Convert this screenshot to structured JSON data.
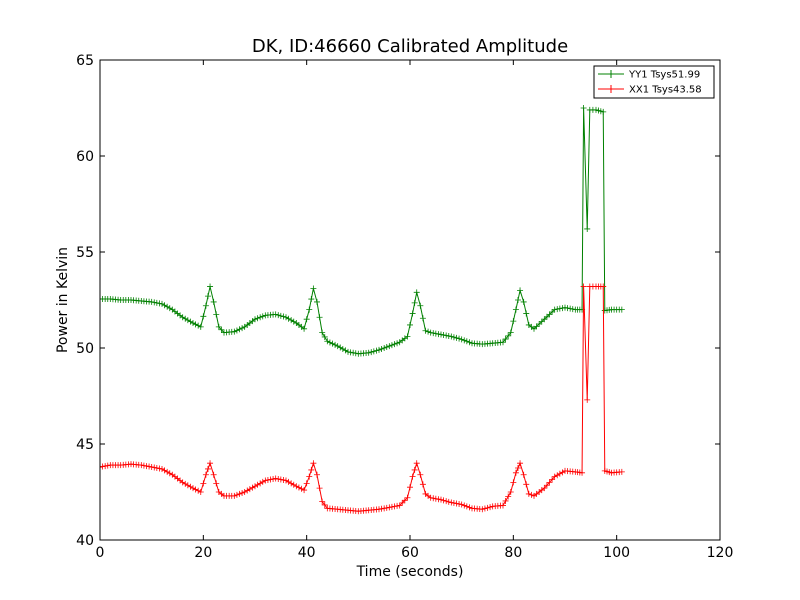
{
  "chart_data": {
    "type": "line",
    "title": "DK, ID:46660 Calibrated Amplitude",
    "xlabel": "Time (seconds)",
    "ylabel": "Power in Kelvin",
    "xlim": [
      0,
      120
    ],
    "ylim": [
      40,
      65
    ],
    "xticks": [
      0,
      20,
      40,
      60,
      80,
      100,
      120
    ],
    "yticks": [
      40,
      45,
      50,
      55,
      60,
      65
    ],
    "grid": false,
    "legend_position": "top-right",
    "marker": "+",
    "series": [
      {
        "name": "YY1 Tsys51.99",
        "color": "#008000",
        "points": [
          [
            0,
            52.55
          ],
          [
            2,
            52.55
          ],
          [
            4,
            52.5
          ],
          [
            6,
            52.5
          ],
          [
            8,
            52.45
          ],
          [
            10,
            52.4
          ],
          [
            12,
            52.3
          ],
          [
            14,
            52.0
          ],
          [
            16,
            51.6
          ],
          [
            18,
            51.3
          ],
          [
            19.5,
            51.1
          ],
          [
            20.5,
            52.2
          ],
          [
            21.3,
            53.2
          ],
          [
            22,
            52.4
          ],
          [
            23,
            51.1
          ],
          [
            24,
            50.8
          ],
          [
            26,
            50.85
          ],
          [
            28,
            51.1
          ],
          [
            30,
            51.5
          ],
          [
            32,
            51.7
          ],
          [
            34,
            51.75
          ],
          [
            36,
            51.6
          ],
          [
            38,
            51.3
          ],
          [
            39.5,
            51.0
          ],
          [
            40.5,
            52.0
          ],
          [
            41.3,
            53.1
          ],
          [
            42,
            52.4
          ],
          [
            43,
            50.8
          ],
          [
            44,
            50.35
          ],
          [
            46,
            50.1
          ],
          [
            48,
            49.8
          ],
          [
            50,
            49.7
          ],
          [
            52,
            49.75
          ],
          [
            54,
            49.9
          ],
          [
            56,
            50.1
          ],
          [
            58,
            50.3
          ],
          [
            59.5,
            50.6
          ],
          [
            60.5,
            51.8
          ],
          [
            61.3,
            52.9
          ],
          [
            62,
            52.2
          ],
          [
            63,
            50.9
          ],
          [
            64,
            50.8
          ],
          [
            66,
            50.7
          ],
          [
            68,
            50.6
          ],
          [
            70,
            50.45
          ],
          [
            72,
            50.25
          ],
          [
            74,
            50.2
          ],
          [
            76,
            50.25
          ],
          [
            78,
            50.3
          ],
          [
            79.5,
            50.8
          ],
          [
            80.5,
            52.0
          ],
          [
            81.3,
            53.0
          ],
          [
            82,
            52.4
          ],
          [
            83,
            51.2
          ],
          [
            84,
            51.0
          ],
          [
            86,
            51.5
          ],
          [
            88,
            52.0
          ],
          [
            90,
            52.1
          ],
          [
            92,
            52.0
          ],
          [
            93.3,
            52.0
          ],
          [
            93.6,
            62.5
          ],
          [
            94.3,
            56.2
          ],
          [
            94.8,
            62.4
          ],
          [
            96,
            62.4
          ],
          [
            97.4,
            62.3
          ],
          [
            97.7,
            51.95
          ],
          [
            99,
            52.0
          ],
          [
            101,
            52.0
          ]
        ]
      },
      {
        "name": "XX1 Tsys43.58",
        "color": "#ff0000",
        "points": [
          [
            0,
            43.8
          ],
          [
            2,
            43.9
          ],
          [
            4,
            43.9
          ],
          [
            6,
            43.95
          ],
          [
            8,
            43.9
          ],
          [
            10,
            43.8
          ],
          [
            12,
            43.7
          ],
          [
            14,
            43.4
          ],
          [
            16,
            43.0
          ],
          [
            18,
            42.7
          ],
          [
            19.5,
            42.5
          ],
          [
            20.5,
            43.4
          ],
          [
            21.3,
            44.0
          ],
          [
            22,
            43.4
          ],
          [
            23,
            42.5
          ],
          [
            24,
            42.3
          ],
          [
            26,
            42.3
          ],
          [
            28,
            42.5
          ],
          [
            30,
            42.8
          ],
          [
            32,
            43.1
          ],
          [
            34,
            43.2
          ],
          [
            36,
            43.1
          ],
          [
            38,
            42.8
          ],
          [
            39.5,
            42.6
          ],
          [
            40.5,
            43.3
          ],
          [
            41.3,
            44.0
          ],
          [
            42,
            43.4
          ],
          [
            43,
            42.0
          ],
          [
            44,
            41.65
          ],
          [
            46,
            41.6
          ],
          [
            48,
            41.55
          ],
          [
            50,
            41.5
          ],
          [
            52,
            41.55
          ],
          [
            54,
            41.6
          ],
          [
            56,
            41.7
          ],
          [
            58,
            41.8
          ],
          [
            59.5,
            42.2
          ],
          [
            60.5,
            43.3
          ],
          [
            61.3,
            44.0
          ],
          [
            62,
            43.4
          ],
          [
            63,
            42.4
          ],
          [
            64,
            42.2
          ],
          [
            66,
            42.1
          ],
          [
            68,
            41.95
          ],
          [
            70,
            41.85
          ],
          [
            72,
            41.65
          ],
          [
            74,
            41.6
          ],
          [
            76,
            41.75
          ],
          [
            78,
            41.8
          ],
          [
            79.5,
            42.5
          ],
          [
            80.5,
            43.5
          ],
          [
            81.3,
            44.0
          ],
          [
            82,
            43.4
          ],
          [
            83,
            42.4
          ],
          [
            84,
            42.3
          ],
          [
            86,
            42.7
          ],
          [
            88,
            43.3
          ],
          [
            90,
            43.6
          ],
          [
            92,
            43.55
          ],
          [
            93.3,
            43.5
          ],
          [
            93.6,
            53.2
          ],
          [
            94.3,
            47.3
          ],
          [
            94.8,
            53.2
          ],
          [
            96,
            53.2
          ],
          [
            97.4,
            53.2
          ],
          [
            97.7,
            43.6
          ],
          [
            99,
            43.5
          ],
          [
            101,
            43.55
          ]
        ]
      }
    ]
  }
}
